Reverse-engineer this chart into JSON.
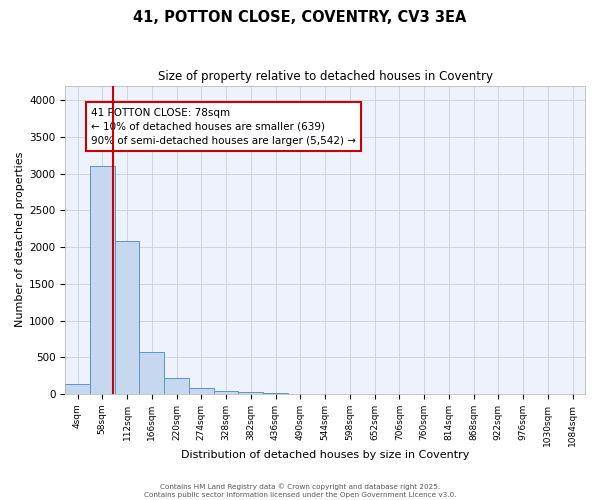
{
  "title1": "41, POTTON CLOSE, COVENTRY, CV3 3EA",
  "title2": "Size of property relative to detached houses in Coventry",
  "xlabel": "Distribution of detached houses by size in Coventry",
  "ylabel": "Number of detached properties",
  "bin_labels": [
    "4sqm",
    "58sqm",
    "112sqm",
    "166sqm",
    "220sqm",
    "274sqm",
    "328sqm",
    "382sqm",
    "436sqm",
    "490sqm",
    "544sqm",
    "598sqm",
    "652sqm",
    "706sqm",
    "760sqm",
    "814sqm",
    "868sqm",
    "922sqm",
    "976sqm",
    "1030sqm",
    "1084sqm"
  ],
  "bin_values": [
    140,
    3100,
    2080,
    575,
    220,
    75,
    40,
    25,
    10,
    0,
    0,
    0,
    0,
    0,
    0,
    0,
    0,
    0,
    0,
    0,
    0
  ],
  "bar_color": "#c5d8f0",
  "bar_edge_color": "#5a96c8",
  "background_color": "#eef2fc",
  "grid_color": "#c8cfe0",
  "red_line_x": 1.42,
  "annotation_text": "41 POTTON CLOSE: 78sqm\n← 10% of detached houses are smaller (639)\n90% of semi-detached houses are larger (5,542) →",
  "annotation_box_color": "#ffffff",
  "annotation_box_edge": "#cc0000",
  "footer_text": "Contains HM Land Registry data © Crown copyright and database right 2025.\nContains public sector information licensed under the Open Government Licence v3.0.",
  "ylim": [
    0,
    4200
  ],
  "yticks": [
    0,
    500,
    1000,
    1500,
    2000,
    2500,
    3000,
    3500,
    4000
  ]
}
